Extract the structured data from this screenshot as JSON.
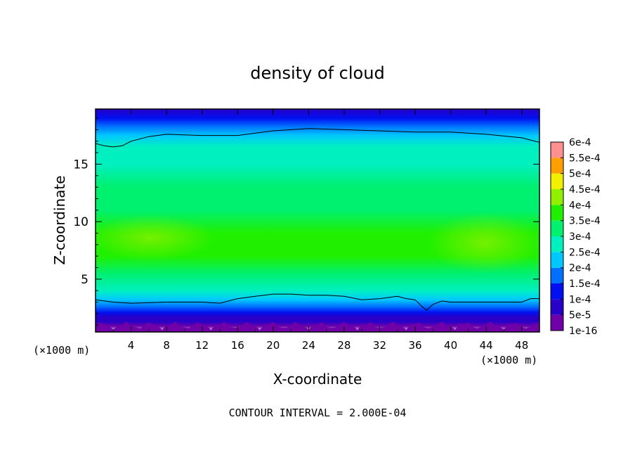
{
  "chart_data": {
    "type": "contour",
    "title": "density of cloud",
    "xlabel": "X-coordinate",
    "ylabel": "Z-coordinate",
    "x_units": "(×1000 m)",
    "x_units_right": "(×1000 m)",
    "footer": "CONTOUR INTERVAL = 2.000E-04",
    "xlim": [
      0,
      50
    ],
    "ylim": [
      0.4,
      19.8
    ],
    "x_ticks": [
      4,
      8,
      12,
      16,
      20,
      24,
      28,
      32,
      36,
      40,
      44,
      48
    ],
    "y_ticks": [
      5,
      10,
      15
    ],
    "colorbar": {
      "labels": [
        "1e-16",
        "5e-5",
        "1e-4",
        "1.5e-4",
        "2e-4",
        "2.5e-4",
        "3e-4",
        "3.5e-4",
        "4e-4",
        "4.5e-4",
        "5e-4",
        "5.5e-4",
        "6e-4"
      ],
      "colors": [
        "#7000a8",
        "#2800c8",
        "#0010f0",
        "#0070ff",
        "#00c8ff",
        "#00f0c0",
        "#00f070",
        "#20f000",
        "#90f000",
        "#f0f000",
        "#ffa000",
        "#ff3000",
        "#ff9090"
      ]
    },
    "contour_lines": [
      {
        "level": 0.0002,
        "name": "upper",
        "x": [
          0,
          1,
          2,
          3,
          4,
          6,
          8,
          12,
          16,
          20,
          24,
          28,
          32,
          36,
          40,
          44,
          48,
          50
        ],
        "z": [
          16.8,
          16.6,
          16.5,
          16.6,
          17.0,
          17.4,
          17.6,
          17.5,
          17.5,
          17.9,
          18.1,
          18.0,
          17.9,
          17.8,
          17.8,
          17.6,
          17.3,
          16.9
        ]
      },
      {
        "level": 0.0002,
        "name": "lower",
        "x": [
          0,
          2,
          4,
          8,
          12,
          14,
          16,
          18,
          20,
          22,
          24,
          26,
          28,
          30,
          32,
          34,
          35,
          36,
          36.8,
          37.3,
          38,
          39,
          40,
          44,
          48,
          49,
          50
        ],
        "z": [
          3.2,
          3.0,
          2.9,
          3.0,
          3.0,
          2.9,
          3.3,
          3.5,
          3.7,
          3.7,
          3.6,
          3.6,
          3.5,
          3.2,
          3.3,
          3.5,
          3.3,
          3.2,
          2.6,
          2.3,
          2.8,
          3.1,
          3.0,
          3.0,
          3.0,
          3.3,
          3.3
        ]
      }
    ],
    "density_profile": {
      "z": [
        0.4,
        0.9,
        1.3,
        1.7,
        2.1,
        2.6,
        3.2,
        4.0,
        5.5,
        7.0,
        9.0,
        11.0,
        13.0,
        15.0,
        16.5,
        17.5,
        18.3,
        19.0,
        19.8
      ],
      "density": [
        0,
        0.0,
        3e-05,
        7e-05,
        0.00011,
        0.00015,
        0.0002,
        0.00026,
        0.0003,
        0.00033,
        0.00033,
        0.00031,
        0.0003,
        0.00026,
        0.00023,
        0.00019,
        0.00015,
        0.0001,
        5e-05
      ]
    }
  }
}
